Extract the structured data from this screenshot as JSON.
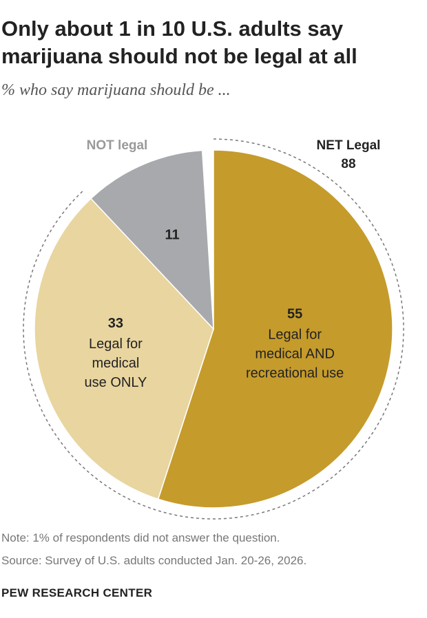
{
  "title": "Only about 1 in 10 U.S. adults say marijuana should not be legal at all",
  "subtitle": "% who say marijuana should be ...",
  "chart_data": {
    "type": "pie",
    "title": "Only about 1 in 10 U.S. adults say marijuana should not be legal at all",
    "subtitle": "% who say marijuana should be ...",
    "slices": [
      {
        "label": "Legal for medical AND recreational use",
        "label_lines": [
          "Legal for",
          "medical AND",
          "recreational use"
        ],
        "value": 55,
        "value_label": "55",
        "color": "#c59b2b"
      },
      {
        "label": "Legal for medical use ONLY",
        "label_lines": [
          "Legal for",
          "medical",
          "use ONLY"
        ],
        "value": 33,
        "value_label": "33",
        "color": "#e9d59f"
      },
      {
        "label": "NOT legal",
        "label_lines": [],
        "value": 11,
        "value_label": "11",
        "color": "#a8a9ac"
      }
    ],
    "annotations": [
      {
        "text": "NOT legal",
        "color": "#999999"
      },
      {
        "text": "NET Legal",
        "value": "88",
        "color": "#222222"
      }
    ]
  },
  "note": "Note: 1% of respondents did not answer the question.",
  "source": "Source: Survey of U.S. adults conducted Jan. 20-26, 2026.",
  "brand": "PEW RESEARCH CENTER"
}
